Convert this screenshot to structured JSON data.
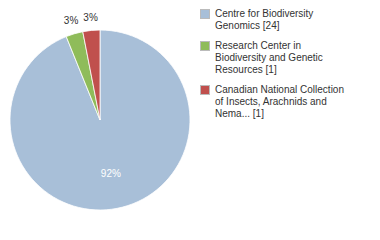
{
  "chart_data": {
    "type": "pie",
    "categories": [
      "Centre for Biodiversity\nGenomics [24]",
      "Research Center in\nBiodiversity and Genetic\nResources [1]",
      "Canadian National Collection\nof Insects, Arachnids and\nNema... [1]"
    ],
    "values": [
      92,
      3,
      3
    ],
    "value_labels": [
      "92%",
      "3%",
      "3%"
    ],
    "colors": [
      "#a8bfd8",
      "#8fbc5a",
      "#c0504d"
    ],
    "data_labels": true,
    "legend": "right"
  }
}
